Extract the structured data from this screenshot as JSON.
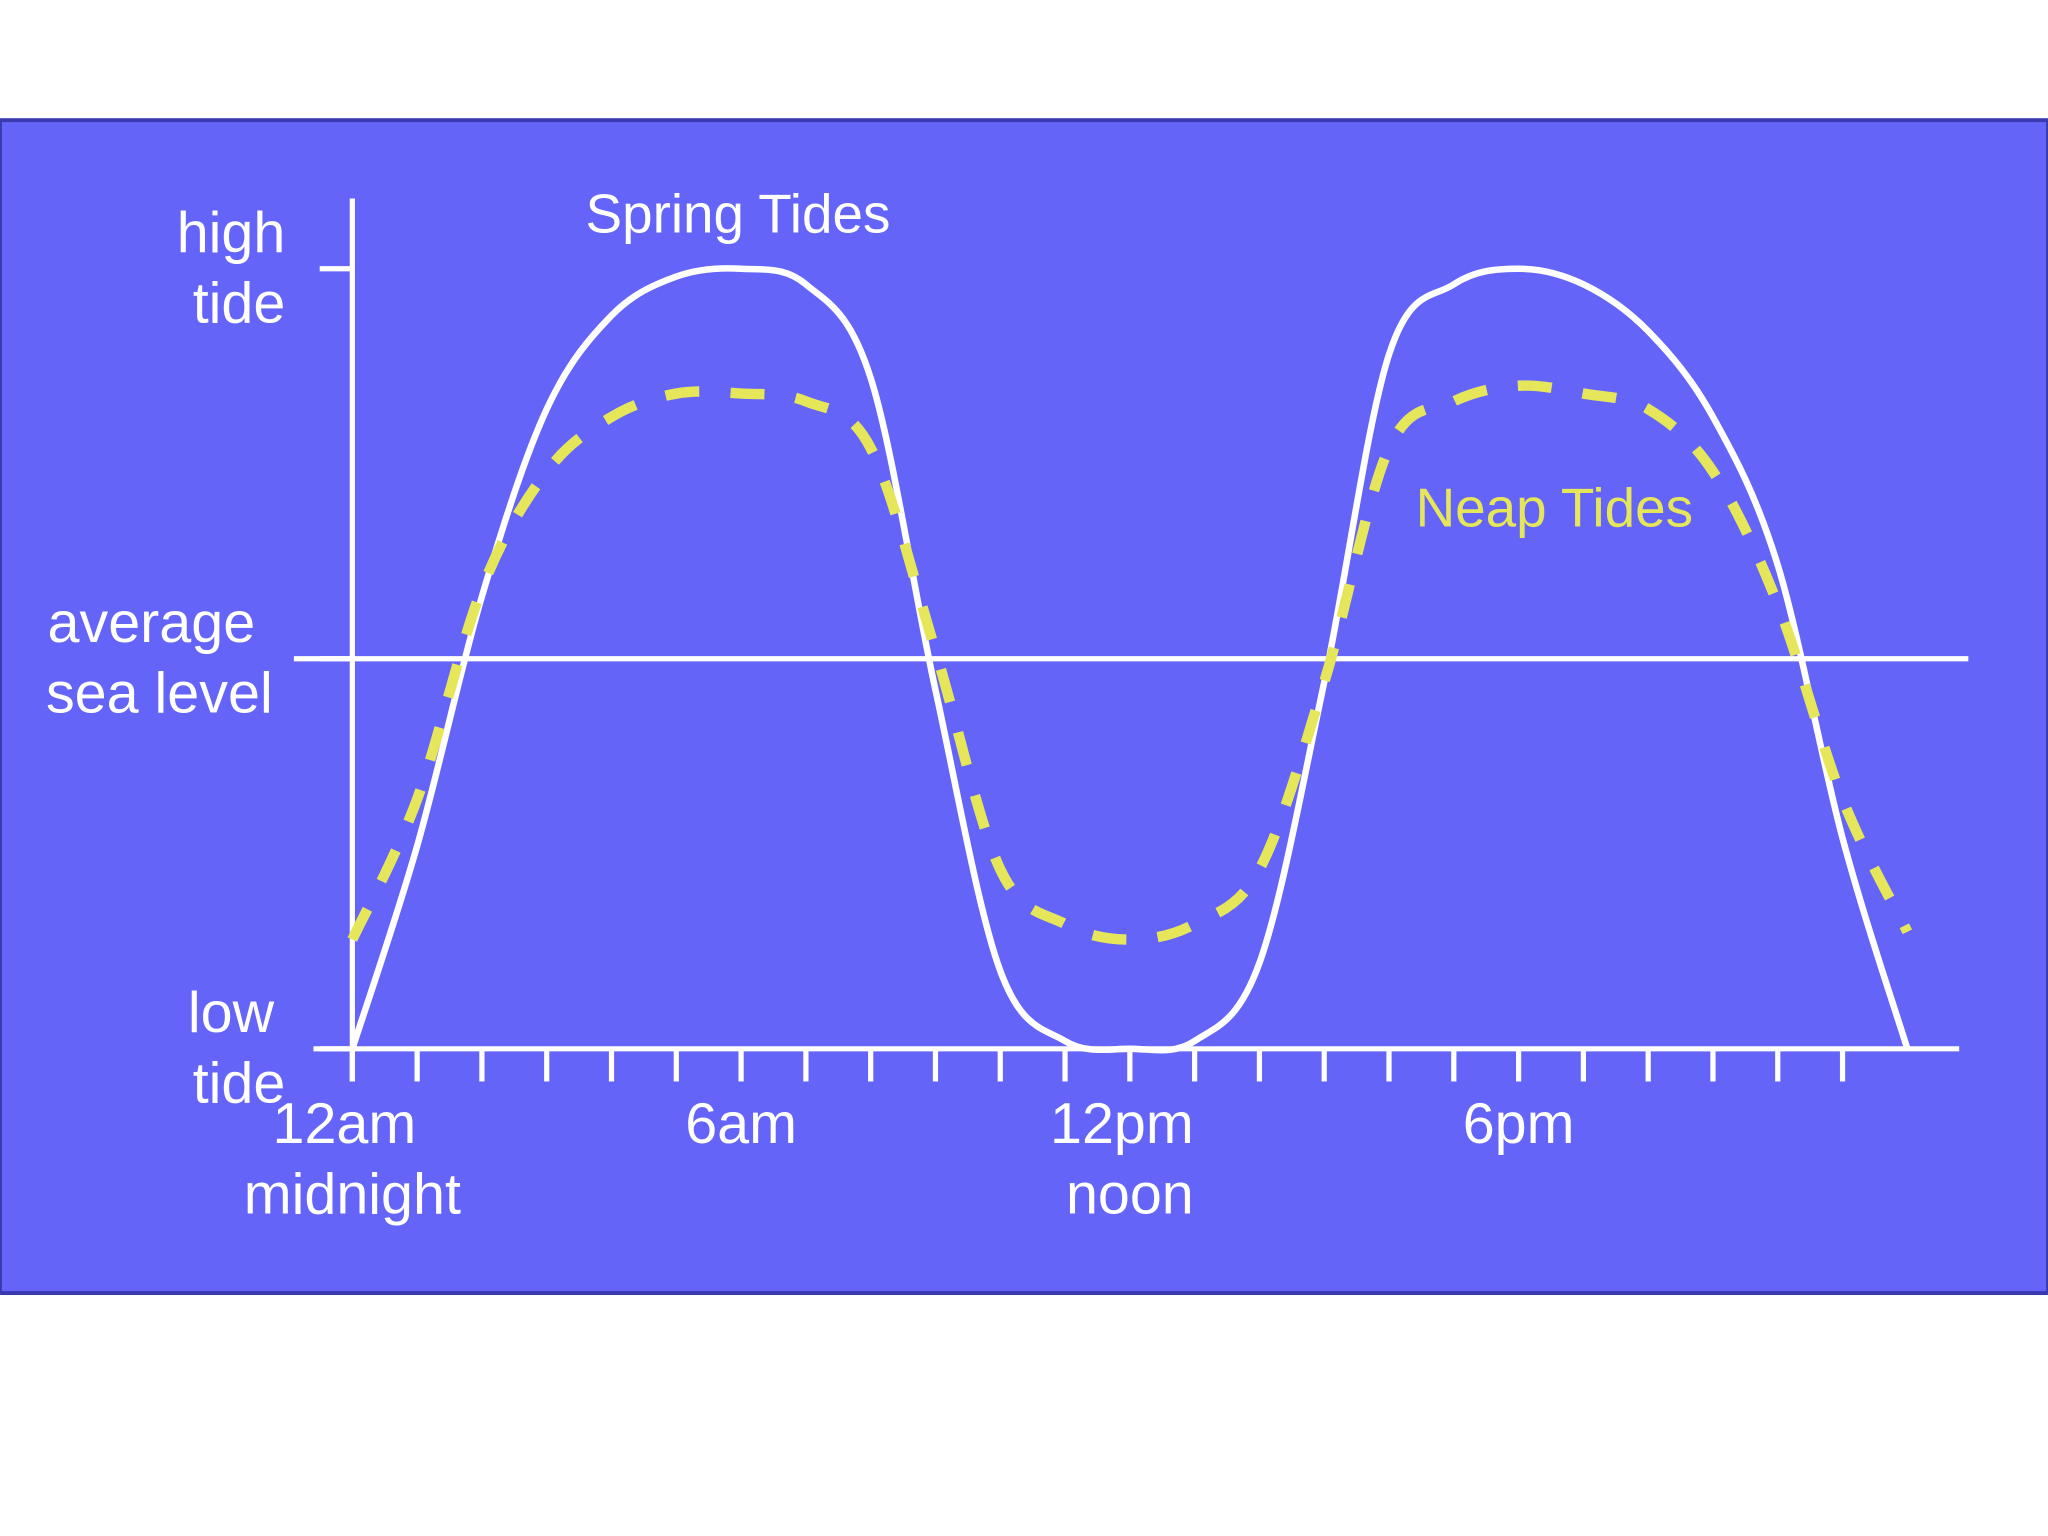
{
  "chart_data": {
    "type": "line",
    "x": [
      0,
      1,
      2,
      3,
      4,
      5,
      6,
      7,
      8,
      9,
      10,
      11,
      12,
      13,
      14,
      15,
      16,
      17,
      18,
      19,
      20,
      21,
      22,
      23,
      24
    ],
    "series": [
      {
        "name": "Spring Tides",
        "color": "#ffffff",
        "style": "solid",
        "values": [
          0,
          0.26,
          0.58,
          0.82,
          0.94,
          0.99,
          1.0,
          0.98,
          0.86,
          0.46,
          0.1,
          0.01,
          0,
          0.01,
          0.11,
          0.47,
          0.89,
          0.98,
          1.0,
          0.98,
          0.92,
          0.81,
          0.62,
          0.27,
          0
        ]
      },
      {
        "name": "Neap Tides",
        "color": "#e6e65a",
        "style": "dashed",
        "values": [
          0.14,
          0.32,
          0.59,
          0.74,
          0.81,
          0.84,
          0.84,
          0.83,
          0.77,
          0.51,
          0.23,
          0.16,
          0.14,
          0.16,
          0.23,
          0.47,
          0.77,
          0.83,
          0.85,
          0.84,
          0.82,
          0.74,
          0.57,
          0.32,
          0.15
        ]
      }
    ],
    "xlim": [
      -0.6,
      24.8
    ],
    "xticks": [
      0,
      1,
      2,
      3,
      4,
      5,
      6,
      7,
      8,
      9,
      10,
      11,
      12,
      13,
      14,
      15,
      16,
      17,
      18,
      19,
      20,
      21,
      22,
      23
    ],
    "xtick_labels": [
      {
        "value": 0,
        "label": "12am midnight"
      },
      {
        "value": 6,
        "label": "6am"
      },
      {
        "value": 12,
        "label": "12pm noon"
      },
      {
        "value": 18,
        "label": "6pm"
      }
    ],
    "ylim": [
      0,
      1.09
    ],
    "yticks": [
      {
        "value": 0,
        "label": "low tide"
      },
      {
        "value": 0.5,
        "label": "average sea level"
      },
      {
        "value": 1,
        "label": "high tide"
      }
    ],
    "reference_lines": [
      0.5
    ],
    "background": "#6464f8"
  }
}
